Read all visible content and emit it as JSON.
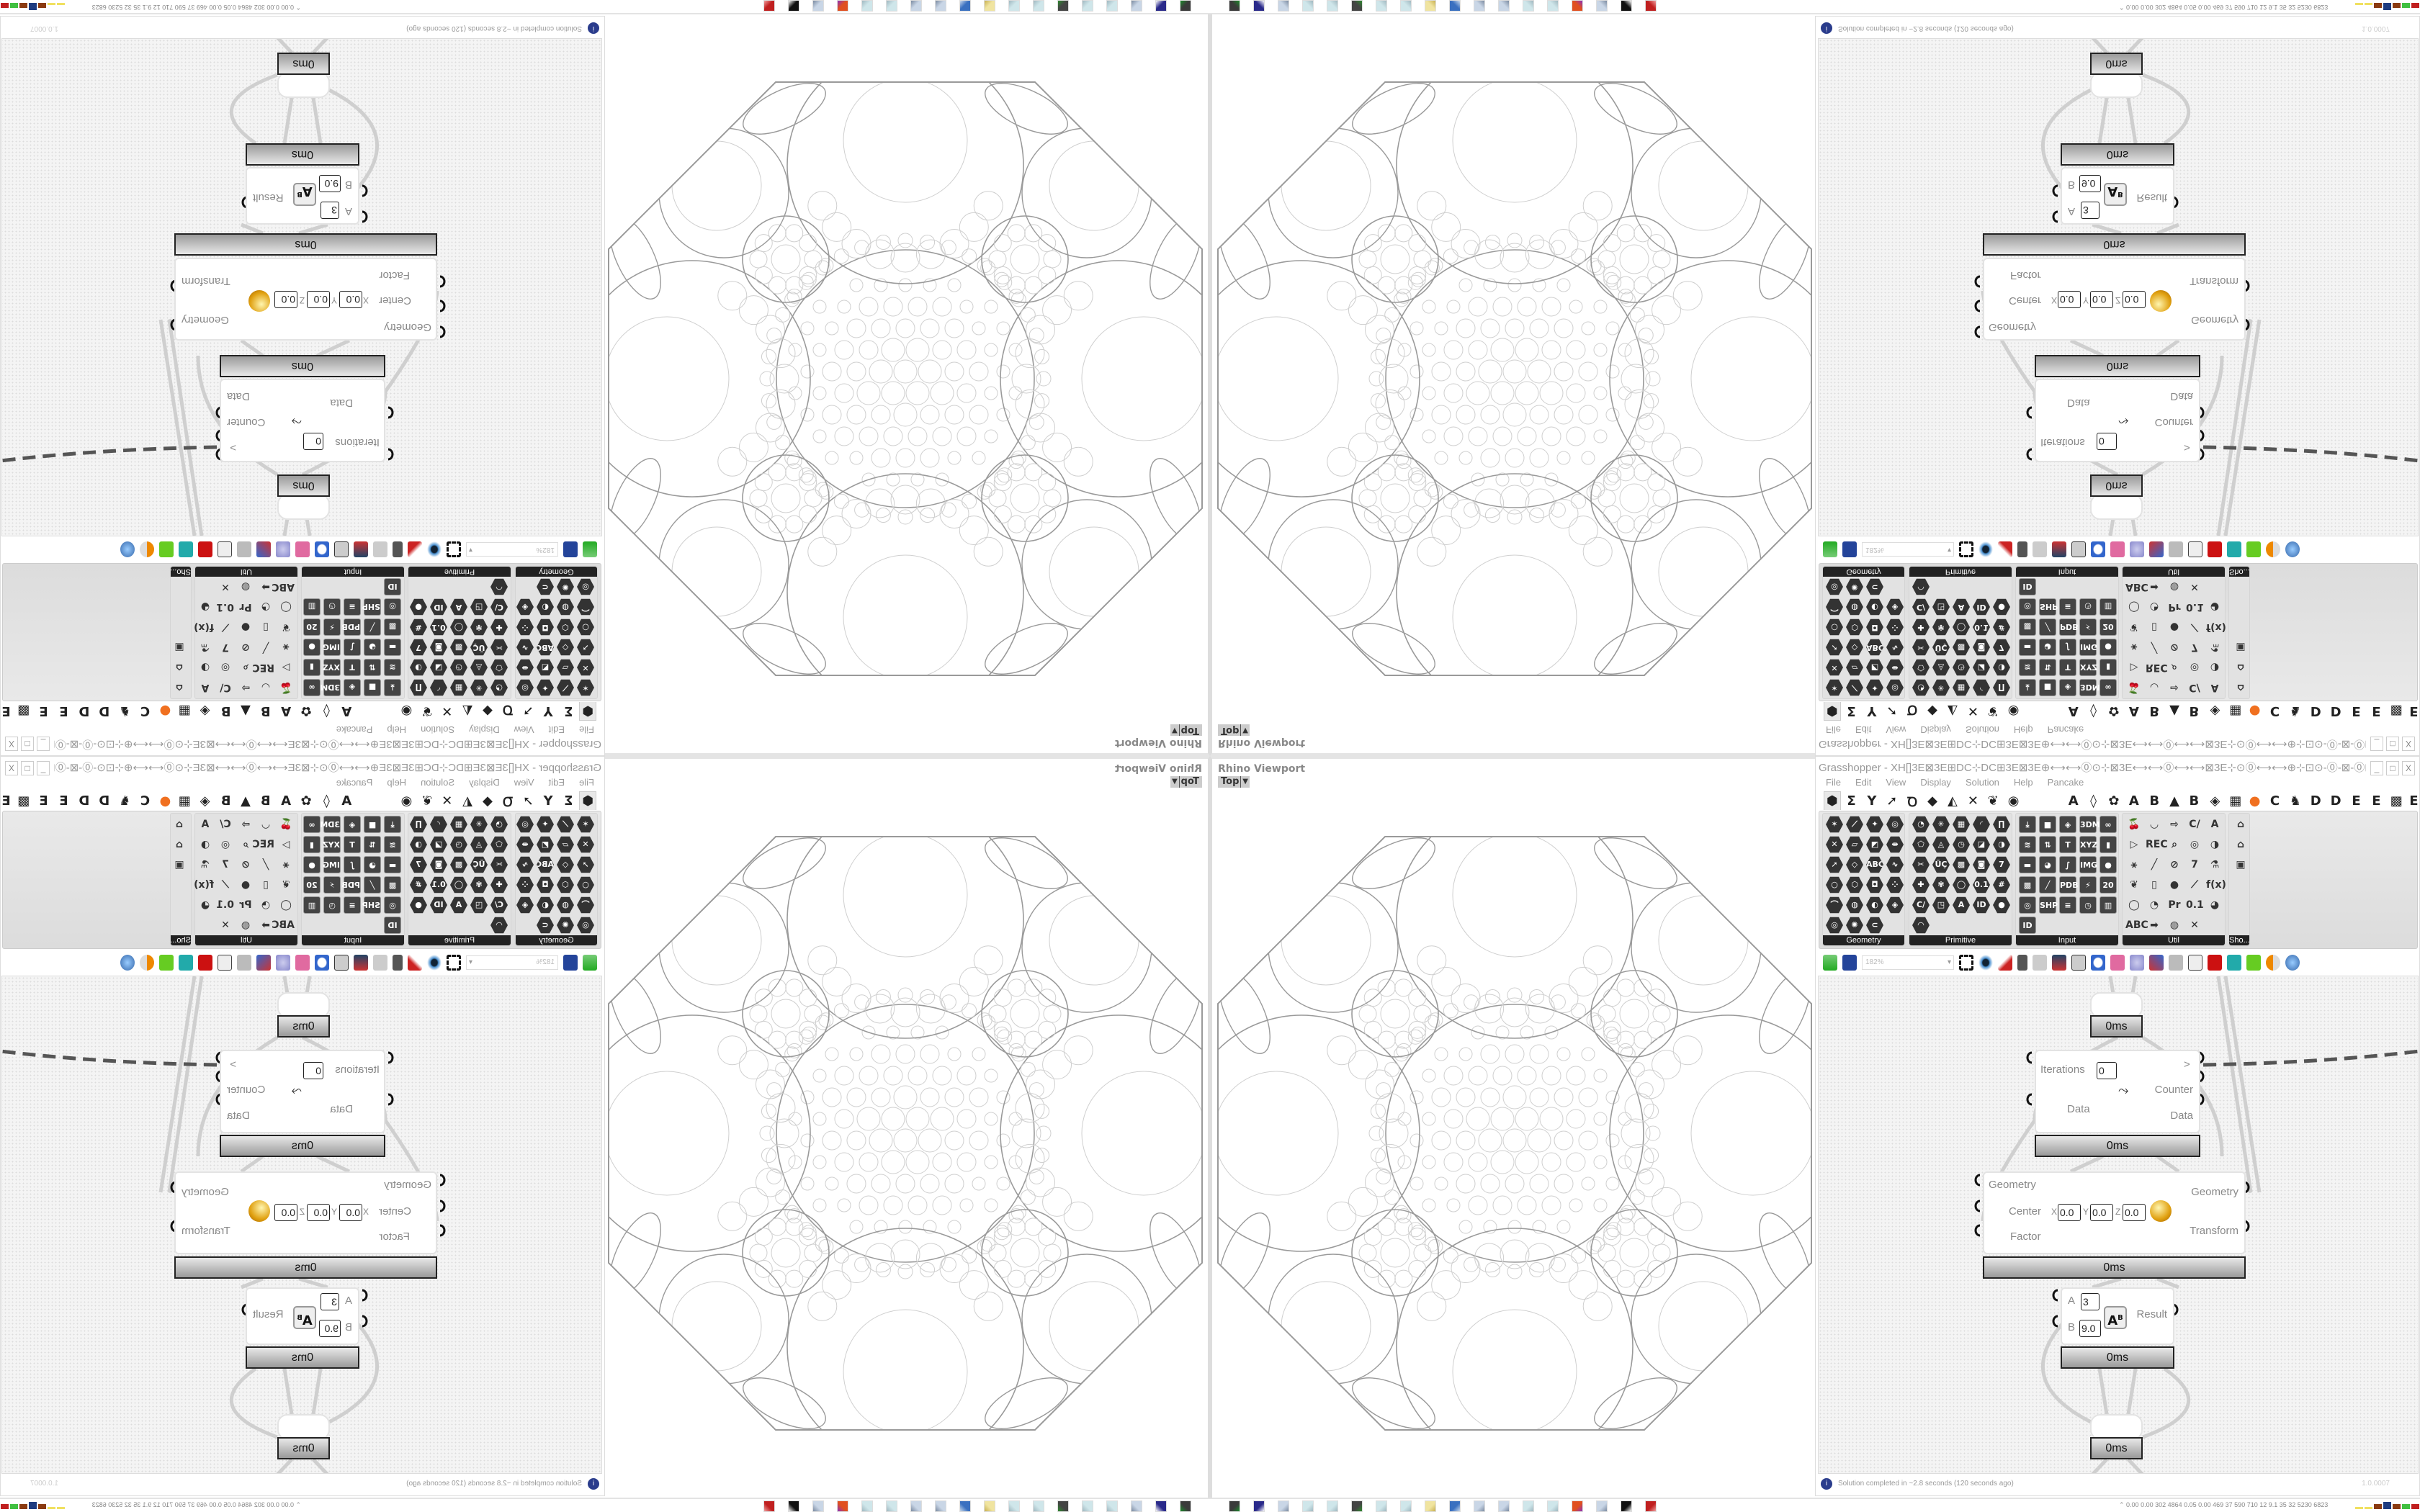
{
  "viewport": {
    "label": "Rhino Viewport",
    "view": "Top",
    "line_color": "#9a9a9a",
    "inner_line_color": "#cfcfcf"
  },
  "gh": {
    "title": "Grasshopper - XH[]3E⊠3E⊞DC⊹DC⊞3E⊠3E⊕⟷⟷⓪⊙⊹⊠3E⟷⟷⓪⟷⟷⊠3E⊹⊙⓪⟷⟷⊕⊹⊡⊙-⓪-⊠-⓪⊡⊹⊕⟷⟷⊙⊹⊡⟷⟷3E[]3E⟷⟷⊡⊹⊙⟷⟷⊕⊹⊡⊙-⓪-⊠-⓪⊡⊹⊕⟷⟷⓪⊙⊹⊠3E⟷⟷⓪...",
    "window_buttons": [
      "_",
      "□",
      "X"
    ],
    "menu": [
      "File",
      "Edit",
      "View",
      "Display",
      "Solution",
      "Help",
      "Pancake"
    ],
    "tabs": [
      "⬢",
      "Σ",
      "Y",
      "➚",
      "Ꝺ",
      "◆",
      "◭",
      "✕",
      "❦",
      "◉",
      "A",
      "◊",
      "✿",
      "A",
      "B",
      "▲",
      "B",
      "◈",
      "▦",
      "●",
      "C",
      "♞",
      "D",
      "D",
      "E",
      "E",
      "▩",
      "E"
    ],
    "panels": [
      {
        "label": "Geometry",
        "icons": [
          "✶",
          "⟋",
          "✦",
          "◎",
          "✕",
          "▱",
          "◩",
          "⇹",
          "➚",
          "◇",
          "ABC",
          "∿",
          "○",
          "⬡",
          "◘",
          "⁘",
          "⌒",
          "◍",
          "◐",
          "◈",
          "◎",
          "✺",
          "⊂"
        ]
      },
      {
        "label": "Primitive",
        "icons": [
          "◔",
          "✳",
          "▦",
          "◜",
          "∏",
          "⬠",
          "◬",
          "◷",
          "◪",
          "◑",
          "✂",
          "ÜÇ",
          "▩",
          "◙",
          "7",
          "✚",
          "✾",
          "◯",
          "0.1",
          "#",
          "C/",
          "◳",
          "A",
          "ID",
          "●",
          "◠"
        ]
      },
      {
        "label": "Input",
        "icons": [
          "⤓",
          "■",
          "◈",
          "3DM",
          "∞",
          "≋",
          "⇅",
          "T",
          "XYZ",
          "▮",
          "▬",
          "◕",
          "∫",
          "IMG",
          "●",
          "▩",
          "╱",
          "PDB",
          "⚡",
          "20",
          "◎",
          "SHP",
          "≡",
          "◷",
          "▥",
          "ID"
        ]
      },
      {
        "label": "Util",
        "icons": [
          "🍒",
          "◡",
          "⇨",
          "C/",
          "A",
          "▷",
          "REC",
          "⌕",
          "◎",
          "◑",
          "⚹",
          "╱",
          "⊘",
          "7",
          "⚗",
          "❦",
          "▯",
          "●",
          "⟋",
          "f(x)",
          "◯",
          "◔",
          "Pr",
          "0.1",
          "◕",
          "ABC",
          "➡",
          "◍",
          "✕"
        ]
      },
      {
        "label": "Sho...",
        "icons": [
          "⌂",
          "⌂",
          "▣"
        ]
      }
    ],
    "toolbar": {
      "zoom": "182%"
    },
    "canvas": {
      "wire_color": "#cfcfcf",
      "dashed_wire_color": "#555555",
      "timers": {
        "top": "0ms",
        "loop": "0ms",
        "scale": "0ms",
        "power": "0ms",
        "bottom": "0ms"
      },
      "loop": {
        "iterations_label": "Iterations",
        "iterations_value": "0",
        "data_in": "Data",
        "next_out": ">",
        "counter_out": "Counter",
        "data_out": "Data"
      },
      "scale": {
        "geometry_in": "Geometry",
        "center_label": "Center",
        "x_label": "X",
        "x": "0.0",
        "y_label": "Y",
        "y": "0.0",
        "z_label": "Z",
        "z": "0.0",
        "factor_in": "Factor",
        "geometry_out": "Geometry",
        "transform_out": "Transform"
      },
      "power": {
        "a_label": "A",
        "a": "3",
        "b_label": "B",
        "b": "9.0",
        "result": "Result",
        "icon": "A",
        "icon_sup": "B"
      }
    },
    "status": {
      "message": "Solution completed in ~2.8 seconds (120 seconds ago)",
      "version": "1.0.0007"
    }
  },
  "taskbar": {
    "icons": [
      [
        "#3a3a3a",
        "#1c8a2a"
      ],
      [
        "#2a2a8a",
        "#fff"
      ],
      [
        "#c9d6e6",
        "#7a8aa0"
      ],
      [
        "#cfe6ea",
        "#a0b8c0"
      ],
      [
        "#cfe6ea",
        "#a0b8c0"
      ],
      [
        "#444",
        "#2d8a2d"
      ],
      [
        "#cfe6ea",
        "#a0b8c0"
      ],
      [
        "#cfe6ea",
        "#a0b8c0"
      ],
      [
        "#f0e4a0",
        "#c8b050"
      ],
      [
        "#3a70c0",
        "#c8d8ea"
      ],
      [
        "#c9d6e6",
        "#7a8aa0"
      ],
      [
        "#c9d6e6",
        "#7a8aa0"
      ],
      [
        "#cfe6ea",
        "#a0b8c0"
      ],
      [
        "#cfe6ea",
        "#a0b8c0"
      ],
      [
        "#e05020",
        "#8a30c0"
      ],
      [
        "#c9d6e6",
        "#7a8aa0"
      ],
      [
        "#111",
        "#fff"
      ],
      [
        "#c02020",
        "#f0a0a0"
      ]
    ],
    "tray": "0.00  0.00  302  4864 0.05  0.00  469   37   590   710   12   9.1   35   32  5230 6823",
    "tray_bars": [
      "#f0e060",
      "#f0e060",
      "#8a3a10",
      "#1e3c80",
      "#8a3a10",
      "#40c040",
      "#c02020"
    ]
  }
}
